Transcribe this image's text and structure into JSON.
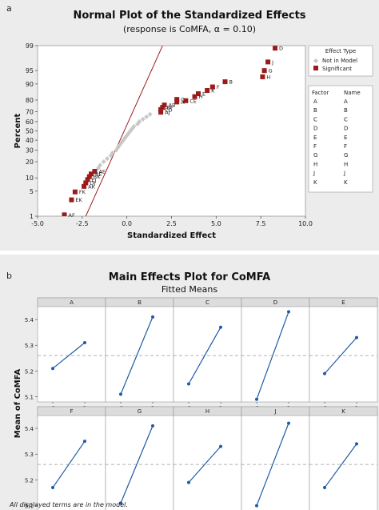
{
  "panel_a": {
    "letter": "a",
    "title": "Normal Plot of the Standardized Effects",
    "subtitle": "(response is CoMFA, α = 0.10)",
    "legend": {
      "title": "Effect Type",
      "entries": [
        "Not in Model",
        "Significant"
      ]
    },
    "factor_table": {
      "headers": [
        "Factor",
        "Name"
      ],
      "rows": [
        [
          "A",
          "A"
        ],
        [
          "B",
          "B"
        ],
        [
          "C",
          "C"
        ],
        [
          "D",
          "D"
        ],
        [
          "E",
          "E"
        ],
        [
          "F",
          "F"
        ],
        [
          "G",
          "G"
        ],
        [
          "H",
          "H"
        ],
        [
          "J",
          "J"
        ],
        [
          "K",
          "K"
        ]
      ]
    }
  },
  "panel_b": {
    "letter": "b",
    "title": "Main Effects Plot for CoMFA",
    "subtitle": "Fitted Means",
    "footnote": "All displayed terms are in the model."
  },
  "colors": {
    "significant": "#9b1b1b",
    "not_in_model": "#c8c8c8",
    "line": "#a11c1c",
    "effect_line": "#1f5aa6"
  },
  "chart_data": [
    {
      "type": "scatter",
      "title": "Normal Plot of the Standardized Effects",
      "subtitle": "(response is CoMFA, α = 0.10)",
      "xlabel": "Standardized Effect",
      "ylabel": "Percent",
      "xlim": [
        -5.0,
        10.0
      ],
      "xticks": [
        "-5.0",
        "-2.5",
        "0.0",
        "2.5",
        "5.0",
        "7.5",
        "10.0"
      ],
      "yscale": "normal-probability",
      "yticks": [
        1,
        5,
        10,
        20,
        30,
        40,
        50,
        60,
        70,
        80,
        90,
        95,
        99
      ],
      "series": [
        {
          "name": "Significant",
          "points": [
            {
              "label": "AF",
              "x": -3.5,
              "y": 1.1
            },
            {
              "label": "EK",
              "x": -3.1,
              "y": 3.0
            },
            {
              "label": "FK",
              "x": -2.9,
              "y": 4.8
            },
            {
              "label": "AK",
              "x": -2.4,
              "y": 6.5
            },
            {
              "label": "DJ",
              "x": -2.3,
              "y": 7.8
            },
            {
              "label": "EJ",
              "x": -2.2,
              "y": 9.2
            },
            {
              "label": "BK",
              "x": -2.1,
              "y": 10.6
            },
            {
              "label": "BE",
              "x": -2.0,
              "y": 12.0
            },
            {
              "label": "AE",
              "x": -1.8,
              "y": 13.5
            },
            {
              "label": "AJ",
              "x": 1.9,
              "y": 69.5
            },
            {
              "label": "CD",
              "x": 1.9,
              "y": 72.0
            },
            {
              "label": "BF",
              "x": 2.0,
              "y": 74.0
            },
            {
              "label": "AB",
              "x": 2.1,
              "y": 76.0
            },
            {
              "label": "A",
              "x": 2.8,
              "y": 78.5
            },
            {
              "label": "C",
              "x": 2.8,
              "y": 80.5
            },
            {
              "label": "CE",
              "x": 3.3,
              "y": 79.5
            },
            {
              "label": "H",
              "x": 3.8,
              "y": 82.5
            },
            {
              "label": "E",
              "x": 4.0,
              "y": 84.5
            },
            {
              "label": "K",
              "x": 4.5,
              "y": 86.5
            },
            {
              "label": "F",
              "x": 4.8,
              "y": 88.5
            },
            {
              "label": "B",
              "x": 5.5,
              "y": 91.0
            },
            {
              "label": "G",
              "x": 7.7,
              "y": 95.0
            },
            {
              "label": "H",
              "x": 7.6,
              "y": 93.0
            },
            {
              "label": "J",
              "x": 7.9,
              "y": 97.0
            },
            {
              "label": "D",
              "x": 8.3,
              "y": 98.8
            }
          ]
        },
        {
          "name": "Not in Model",
          "points": [
            {
              "x": -1.6,
              "y": 15.5
            },
            {
              "x": -1.5,
              "y": 17.5
            },
            {
              "x": -1.3,
              "y": 20.0
            },
            {
              "x": -1.1,
              "y": 22.5
            },
            {
              "x": -0.9,
              "y": 25.0
            },
            {
              "x": -0.8,
              "y": 27.5
            },
            {
              "x": -0.6,
              "y": 30.0
            },
            {
              "x": -0.5,
              "y": 32.5
            },
            {
              "x": -0.4,
              "y": 35.0
            },
            {
              "x": -0.3,
              "y": 37.5
            },
            {
              "x": -0.2,
              "y": 40.0
            },
            {
              "x": -0.1,
              "y": 42.5
            },
            {
              "x": 0.0,
              "y": 45.0
            },
            {
              "x": 0.1,
              "y": 47.5
            },
            {
              "x": 0.2,
              "y": 50.0
            },
            {
              "x": 0.3,
              "y": 52.5
            },
            {
              "x": 0.4,
              "y": 55.0
            },
            {
              "x": 0.6,
              "y": 57.5
            },
            {
              "x": 0.7,
              "y": 60.0
            },
            {
              "x": 0.9,
              "y": 62.5
            },
            {
              "x": 1.1,
              "y": 65.0
            },
            {
              "x": 1.3,
              "y": 67.5
            }
          ]
        }
      ],
      "reference_line": {
        "x_at_1pct": -2.3,
        "x_at_99pct": 2.0
      }
    },
    {
      "type": "line",
      "title": "Main Effects Plot for CoMFA",
      "subtitle": "Fitted Means",
      "ylabel": "Mean of CoMFA",
      "ylim": [
        5.08,
        5.45
      ],
      "yticks": [
        5.1,
        5.2,
        5.3,
        5.4
      ],
      "xticks": [
        "-1",
        "1"
      ],
      "reference_mean": 5.26,
      "panels": [
        {
          "name": "A",
          "x": [
            -1,
            1
          ],
          "values": [
            5.21,
            5.31
          ]
        },
        {
          "name": "B",
          "x": [
            -1,
            1
          ],
          "values": [
            5.11,
            5.41
          ]
        },
        {
          "name": "C",
          "x": [
            -1,
            1
          ],
          "values": [
            5.15,
            5.37
          ]
        },
        {
          "name": "D",
          "x": [
            -1,
            1
          ],
          "values": [
            5.09,
            5.43
          ]
        },
        {
          "name": "E",
          "x": [
            -1,
            1
          ],
          "values": [
            5.19,
            5.33
          ]
        },
        {
          "name": "F",
          "x": [
            -1,
            1
          ],
          "values": [
            5.17,
            5.35
          ]
        },
        {
          "name": "G",
          "x": [
            -1,
            1
          ],
          "values": [
            5.11,
            5.41
          ]
        },
        {
          "name": "H",
          "x": [
            -1,
            1
          ],
          "values": [
            5.19,
            5.33
          ]
        },
        {
          "name": "J",
          "x": [
            -1,
            1
          ],
          "values": [
            5.1,
            5.42
          ]
        },
        {
          "name": "K",
          "x": [
            -1,
            1
          ],
          "values": [
            5.17,
            5.34
          ]
        }
      ]
    }
  ]
}
